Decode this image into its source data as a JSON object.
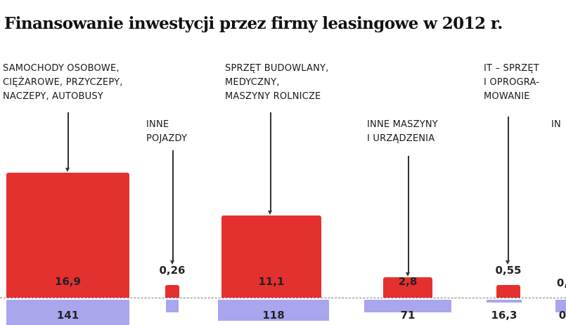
{
  "chart_data": {
    "type": "bar",
    "title": "Finansowanie inwestycji przez firmy leasingowe w 2012 r.",
    "categories": [
      "SAMOCHODY OSOBOWE,\nCIĘŻAROWE, PRZYCZEPY,\nNACZEPY, AUTOBUSY",
      "INNE\nPOJAZDY",
      "SPRZĘT BUDOWLANY,\nMEDYCZNY,\nMASZYNY ROLNICZE",
      "INNE MASZYNY\nI URZĄDZENIA",
      "IT – SPRZĘT\nI OPROGRA-\nMOWANIE",
      "IN"
    ],
    "series": [
      {
        "values": [
          16.9,
          0.26,
          11.1,
          2.8,
          0.55,
          null
        ]
      },
      {
        "values": [
          141,
          null,
          118,
          71,
          16.3,
          null
        ]
      }
    ],
    "value_labels": {
      "top": [
        "16,9",
        "0,26",
        "11,1",
        "2,8",
        "0,55",
        "0,"
      ],
      "bottom": [
        "141",
        "",
        "118",
        "71",
        "16,3",
        "0"
      ]
    },
    "colors": {
      "top": "#e53030",
      "bottom": "#a9a6ee"
    }
  }
}
